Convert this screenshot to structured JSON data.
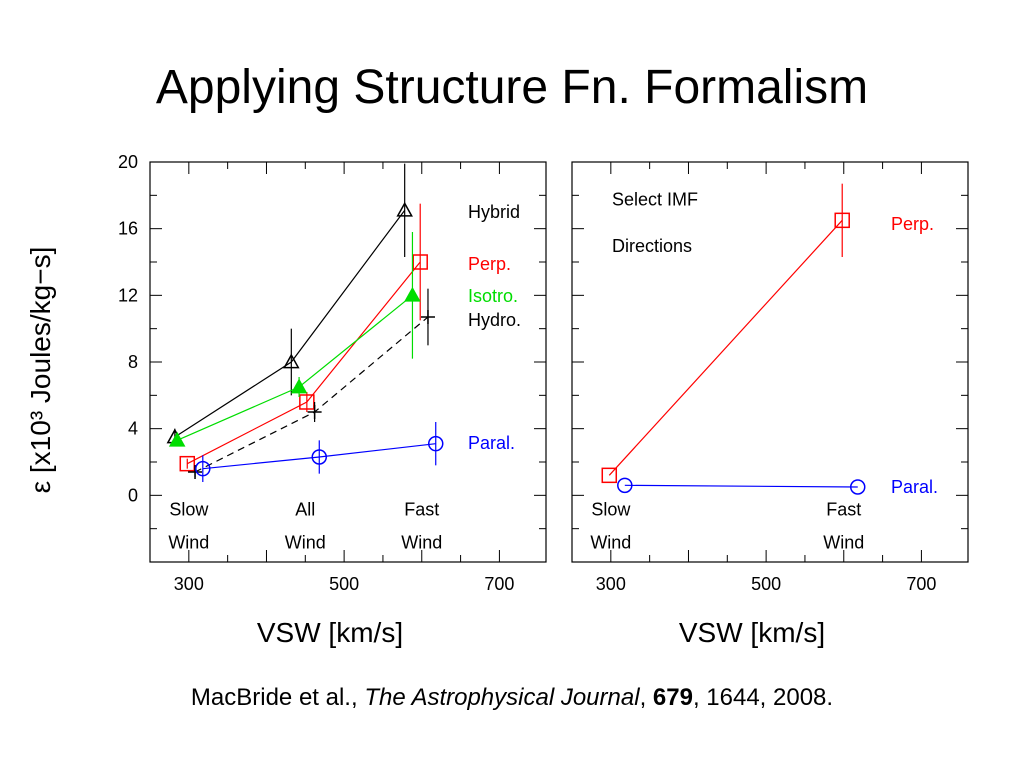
{
  "slide": {
    "title": "Applying Structure Fn. Formalism"
  },
  "citation": {
    "authors": "MacBride et al.,",
    "journal": "The Astrophysical Journal",
    "volume": "679",
    "rest": ", 1644, 2008."
  },
  "colors": {
    "hybrid": "#000000",
    "perp": "#ff0000",
    "isotro": "#00dd00",
    "hydro": "#000000",
    "paral": "#0000ff"
  },
  "chart_data": [
    {
      "type": "line",
      "ylabel": "ε [x10³ Joules/kg−s]",
      "xlabel": "VSW [km/s]",
      "xlim": [
        250,
        760
      ],
      "ylim": [
        -4,
        20
      ],
      "x_ticks": [
        300,
        500,
        700
      ],
      "y_ticks": [
        0,
        4,
        8,
        12,
        16,
        20
      ],
      "category_labels": [
        {
          "x": 300,
          "line1": "Slow",
          "line2": "Wind"
        },
        {
          "x": 450,
          "line1": "All",
          "line2": "Wind"
        },
        {
          "x": 600,
          "line1": "Fast",
          "line2": "Wind"
        }
      ],
      "series": [
        {
          "name": "Hybrid",
          "color": "#000000",
          "marker": "triangle",
          "dash": false,
          "points": [
            {
              "x": 282,
              "y": 3.5,
              "err": 0.5
            },
            {
              "x": 432,
              "y": 8.0,
              "err": 2.0
            },
            {
              "x": 578,
              "y": 17.1,
              "err": 2.8
            }
          ]
        },
        {
          "name": "Perp.",
          "color": "#ff0000",
          "marker": "square",
          "dash": false,
          "points": [
            {
              "x": 298,
              "y": 1.9,
              "err": 0.3
            },
            {
              "x": 452,
              "y": 5.6,
              "err": 0.6
            },
            {
              "x": 598,
              "y": 14.0,
              "err": 3.5
            }
          ]
        },
        {
          "name": "Isotro.",
          "color": "#00dd00",
          "marker": "filled-triangle",
          "dash": false,
          "points": [
            {
              "x": 285,
              "y": 3.3,
              "err": 0.3
            },
            {
              "x": 442,
              "y": 6.5,
              "err": 0.6
            },
            {
              "x": 588,
              "y": 12.0,
              "err": 3.8
            }
          ]
        },
        {
          "name": "Hydro.",
          "color": "#000000",
          "marker": "plus",
          "dash": true,
          "points": [
            {
              "x": 308,
              "y": 1.4,
              "err": 0.3
            },
            {
              "x": 462,
              "y": 5.0,
              "err": 0.6
            },
            {
              "x": 608,
              "y": 10.7,
              "err": 1.7
            }
          ]
        },
        {
          "name": "Paral.",
          "color": "#0000ff",
          "marker": "circle",
          "dash": false,
          "points": [
            {
              "x": 318,
              "y": 1.6,
              "err": 0.8
            },
            {
              "x": 468,
              "y": 2.3,
              "err": 1.0
            },
            {
              "x": 618,
              "y": 3.1,
              "err": 1.3
            }
          ]
        }
      ]
    },
    {
      "type": "line",
      "xlabel": "VSW [km/s]",
      "xlim": [
        250,
        760
      ],
      "ylim": [
        -4,
        20
      ],
      "x_ticks": [
        300,
        500,
        700
      ],
      "y_ticks": [
        0,
        4,
        8,
        12,
        16,
        20
      ],
      "annotation": {
        "line1": "Select IMF",
        "line2": "Directions"
      },
      "category_labels": [
        {
          "x": 300,
          "line1": "Slow",
          "line2": "Wind"
        },
        {
          "x": 600,
          "line1": "Fast",
          "line2": "Wind"
        }
      ],
      "series": [
        {
          "name": "Perp.",
          "color": "#ff0000",
          "marker": "square",
          "dash": false,
          "points": [
            {
              "x": 298,
              "y": 1.2,
              "err": 0
            },
            {
              "x": 598,
              "y": 16.5,
              "err": 2.2
            }
          ]
        },
        {
          "name": "Paral.",
          "color": "#0000ff",
          "marker": "circle",
          "dash": false,
          "points": [
            {
              "x": 318,
              "y": 0.6,
              "err": 0
            },
            {
              "x": 618,
              "y": 0.5,
              "err": 0
            }
          ]
        }
      ]
    }
  ]
}
